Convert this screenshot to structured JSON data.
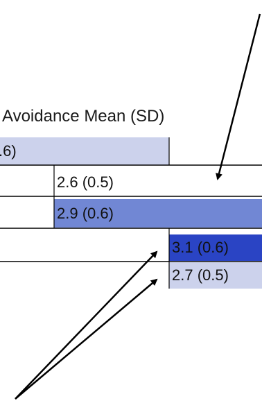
{
  "header": {
    "title": "Avoidance Mean (SD)"
  },
  "rows": [
    {
      "label": ".6)",
      "fill": "#ccd2ec"
    },
    {
      "label": "2.6 (0.5)",
      "fill": "#ffffff"
    },
    {
      "label": "2.9 (0.6)",
      "fill": "#7187d4"
    },
    {
      "label": "3.1 (0.6)",
      "fill": "#2a44c4"
    },
    {
      "label": "2.7 (0.5)",
      "fill": "#ccd2ec"
    }
  ],
  "colors": {
    "line": "#000000",
    "arrow": "#000000"
  }
}
